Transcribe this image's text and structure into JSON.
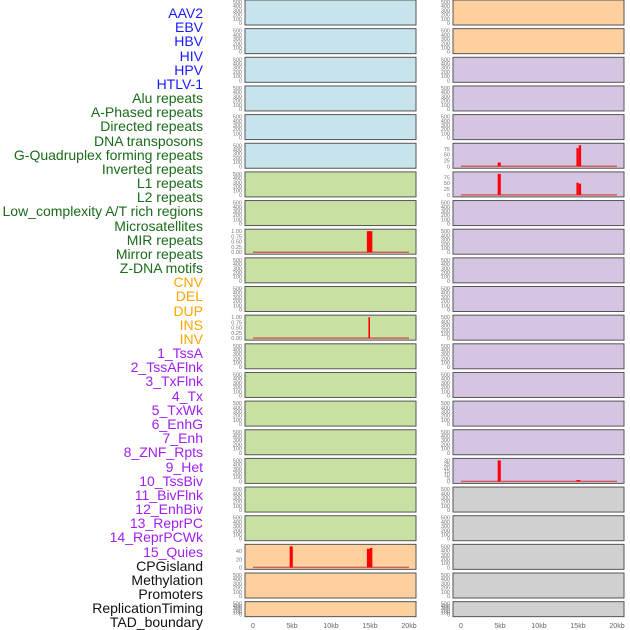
{
  "colors": {
    "blue_label": "#1a1aff",
    "green_label": "#1a6b1a",
    "orange_label": "#ffa500",
    "purple_label": "#a020f0",
    "black_label": "#111111",
    "panel_blue": "#c7e3ec",
    "panel_green": "#c8e0a2",
    "panel_orange": "#fdd09e",
    "panel_purple": "#d5c5e2",
    "panel_gray": "#d0d0d0",
    "spike": "#ff0000",
    "baseline": "#d06060"
  },
  "legend": [
    {
      "text": "AAV2",
      "group": "blue_label"
    },
    {
      "text": "EBV",
      "group": "blue_label"
    },
    {
      "text": "HBV",
      "group": "blue_label"
    },
    {
      "text": "HIV",
      "group": "blue_label"
    },
    {
      "text": "HPV",
      "group": "blue_label"
    },
    {
      "text": "HTLV-1",
      "group": "blue_label"
    },
    {
      "text": "Alu repeats",
      "group": "green_label"
    },
    {
      "text": "A-Phased repeats",
      "group": "green_label"
    },
    {
      "text": "Directed repeats",
      "group": "green_label"
    },
    {
      "text": "DNA transposons",
      "group": "green_label"
    },
    {
      "text": "G-Quadruplex forming repeats",
      "group": "green_label"
    },
    {
      "text": "Inverted repeats",
      "group": "green_label"
    },
    {
      "text": "L1 repeats",
      "group": "green_label"
    },
    {
      "text": "L2 repeats",
      "group": "green_label"
    },
    {
      "text": "Low_complexity A/T rich regions",
      "group": "green_label"
    },
    {
      "text": "Microsatellites",
      "group": "green_label"
    },
    {
      "text": "MIR repeats",
      "group": "green_label"
    },
    {
      "text": "Mirror repeats",
      "group": "green_label"
    },
    {
      "text": "Z-DNA motifs",
      "group": "green_label"
    },
    {
      "text": "CNV",
      "group": "orange_label"
    },
    {
      "text": "DEL",
      "group": "orange_label"
    },
    {
      "text": "DUP",
      "group": "orange_label"
    },
    {
      "text": "INS",
      "group": "orange_label"
    },
    {
      "text": "INV",
      "group": "orange_label"
    },
    {
      "text": "1_TssA",
      "group": "purple_label"
    },
    {
      "text": "2_TssAFlnk",
      "group": "purple_label"
    },
    {
      "text": "3_TxFlnk",
      "group": "purple_label"
    },
    {
      "text": "4_Tx",
      "group": "purple_label"
    },
    {
      "text": "5_TxWk",
      "group": "purple_label"
    },
    {
      "text": "6_EnhG",
      "group": "purple_label"
    },
    {
      "text": "7_Enh",
      "group": "purple_label"
    },
    {
      "text": "8_ZNF_Rpts",
      "group": "purple_label"
    },
    {
      "text": "9_Het",
      "group": "purple_label"
    },
    {
      "text": "10_TssBiv",
      "group": "purple_label"
    },
    {
      "text": "11_BivFlnk",
      "group": "purple_label"
    },
    {
      "text": "12_EnhBiv",
      "group": "purple_label"
    },
    {
      "text": "13_ReprPC",
      "group": "purple_label"
    },
    {
      "text": "14_ReprPCWk",
      "group": "purple_label"
    },
    {
      "text": "15_Quies",
      "group": "purple_label"
    },
    {
      "text": "CPGisland",
      "group": "black_label"
    },
    {
      "text": "Methylation",
      "group": "black_label"
    },
    {
      "text": "Promoters",
      "group": "black_label"
    },
    {
      "text": "ReplicationTiming",
      "group": "black_label"
    },
    {
      "text": "TAD_boundary",
      "group": "black_label"
    }
  ],
  "chart_data": {
    "type": "bar",
    "x_unit": "kb",
    "xlim": [
      0,
      20
    ],
    "x_ticks": [
      {
        "v": 0,
        "label": "0"
      },
      {
        "v": 5,
        "label": "5kb"
      },
      {
        "v": 10,
        "label": "10kb"
      },
      {
        "v": 15,
        "label": "15kb"
      },
      {
        "v": 20,
        "label": "20kb"
      }
    ],
    "default_yticks": [
      0,
      100,
      200,
      300,
      400,
      500
    ],
    "columns": [
      {
        "name": "left",
        "panels": [
          {
            "fill": "panel_blue"
          },
          {
            "fill": "panel_blue"
          },
          {
            "fill": "panel_blue"
          },
          {
            "fill": "panel_blue"
          },
          {
            "fill": "panel_blue"
          },
          {
            "fill": "panel_blue"
          },
          {
            "fill": "panel_green"
          },
          {
            "fill": "panel_green"
          },
          {
            "fill": "panel_green",
            "yticks": [
              0,
              0.25,
              0.5,
              0.75,
              1.0
            ],
            "ylim": [
              0,
              1
            ],
            "decimals": 2,
            "baseline": true,
            "spikes": [
              {
                "x0": 14.6,
                "x1": 15.3,
                "y": 1.0
              }
            ]
          },
          {
            "fill": "panel_green"
          },
          {
            "fill": "panel_green"
          },
          {
            "fill": "panel_green",
            "yticks": [
              0,
              0.25,
              0.5,
              0.75,
              1.0
            ],
            "ylim": [
              0,
              1
            ],
            "decimals": 2,
            "baseline": true,
            "spikes": [
              {
                "x0": 14.8,
                "x1": 15.0,
                "y": 1.0
              }
            ]
          },
          {
            "fill": "panel_green"
          },
          {
            "fill": "panel_green"
          },
          {
            "fill": "panel_green"
          },
          {
            "fill": "panel_green"
          },
          {
            "fill": "panel_green"
          },
          {
            "fill": "panel_green"
          },
          {
            "fill": "panel_green"
          },
          {
            "fill": "panel_orange",
            "yticks": [
              0,
              20,
              40
            ],
            "ylim": [
              0,
              52
            ],
            "baseline": true,
            "spikes": [
              {
                "x0": 4.7,
                "x1": 5.1,
                "y": 52
              },
              {
                "x0": 14.6,
                "x1": 15.0,
                "y": 46
              },
              {
                "x0": 15.0,
                "x1": 15.3,
                "y": 48
              }
            ]
          },
          {
            "fill": "panel_orange"
          },
          {
            "fill": "panel_orange"
          }
        ]
      },
      {
        "name": "right",
        "panels": [
          {
            "fill": "panel_orange"
          },
          {
            "fill": "panel_orange"
          },
          {
            "fill": "panel_purple"
          },
          {
            "fill": "panel_purple"
          },
          {
            "fill": "panel_purple"
          },
          {
            "fill": "panel_purple",
            "yticks": [
              0,
              25,
              50,
              75
            ],
            "ylim": [
              0,
              90
            ],
            "baseline": true,
            "spikes": [
              {
                "x0": 4.7,
                "x1": 5.1,
                "y": 16
              },
              {
                "x0": 14.8,
                "x1": 15.1,
                "y": 78
              },
              {
                "x0": 15.1,
                "x1": 15.4,
                "y": 90
              }
            ]
          },
          {
            "fill": "panel_purple",
            "yticks": [
              0,
              25,
              50,
              75
            ],
            "ylim": [
              0,
              90
            ],
            "baseline": true,
            "spikes": [
              {
                "x0": 4.7,
                "x1": 5.1,
                "y": 90
              },
              {
                "x0": 14.8,
                "x1": 15.1,
                "y": 52
              },
              {
                "x0": 15.1,
                "x1": 15.4,
                "y": 48
              }
            ]
          },
          {
            "fill": "panel_purple"
          },
          {
            "fill": "panel_purple"
          },
          {
            "fill": "panel_purple"
          },
          {
            "fill": "panel_purple"
          },
          {
            "fill": "panel_purple"
          },
          {
            "fill": "panel_purple"
          },
          {
            "fill": "panel_purple"
          },
          {
            "fill": "panel_purple"
          },
          {
            "fill": "panel_purple"
          },
          {
            "fill": "panel_purple",
            "yticks": [
              0,
              5,
              10,
              15,
              20,
              25,
              30
            ],
            "ylim": [
              0,
              30
            ],
            "baseline": true,
            "spikes": [
              {
                "x0": 4.7,
                "x1": 5.1,
                "y": 30
              },
              {
                "x0": 14.8,
                "x1": 15.3,
                "y": 2
              }
            ]
          },
          {
            "fill": "panel_gray"
          },
          {
            "fill": "panel_gray"
          },
          {
            "fill": "panel_gray"
          },
          {
            "fill": "panel_gray"
          },
          {
            "fill": "panel_gray"
          }
        ]
      }
    ]
  }
}
